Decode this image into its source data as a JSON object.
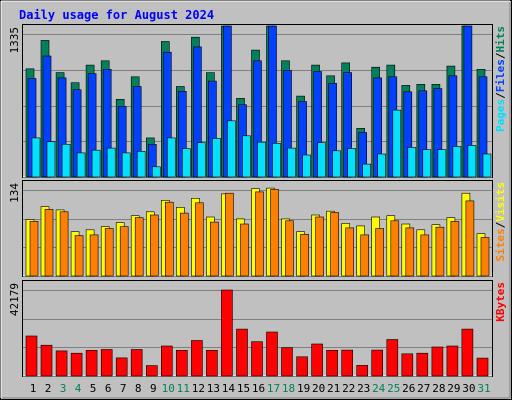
{
  "chart_data": [
    {
      "type": "bar",
      "panel": "top",
      "title": "Daily usage for August 2024",
      "categories": [
        "1",
        "2",
        "3",
        "4",
        "5",
        "6",
        "7",
        "8",
        "9",
        "10",
        "11",
        "12",
        "13",
        "14",
        "15",
        "16",
        "17",
        "18",
        "19",
        "20",
        "21",
        "22",
        "23",
        "24",
        "25",
        "26",
        "27",
        "28",
        "29",
        "30",
        "31"
      ],
      "weekend_days": [
        "3",
        "4",
        "10",
        "11",
        "17",
        "18",
        "24",
        "25",
        "31"
      ],
      "ymax_label": "1335",
      "ymax": 1335,
      "grid": true,
      "legend_placement": "right",
      "series": [
        {
          "name": "Hits",
          "color": "#00805c",
          "values": [
            1010,
            1275,
            975,
            880,
            1045,
            1085,
            725,
            935,
            365,
            1265,
            845,
            1305,
            975,
            1495,
            735,
            1185,
            1555,
            1085,
            755,
            1045,
            945,
            1065,
            455,
            1025,
            1045,
            855,
            865,
            865,
            1035,
            1515,
            1005
          ]
        },
        {
          "name": "Files",
          "color": "#0040ff",
          "values": [
            920,
            1130,
            925,
            815,
            965,
            1005,
            660,
            845,
            305,
            1165,
            800,
            1215,
            895,
            1415,
            675,
            1085,
            1455,
            995,
            705,
            985,
            875,
            975,
            415,
            925,
            935,
            795,
            805,
            825,
            945,
            1445,
            935
          ]
        },
        {
          "name": "Pages",
          "color": "#00e0ff",
          "values": [
            365,
            330,
            305,
            225,
            250,
            270,
            225,
            240,
            95,
            365,
            265,
            320,
            360,
            525,
            385,
            325,
            315,
            270,
            205,
            320,
            245,
            265,
            120,
            215,
            625,
            275,
            255,
            255,
            285,
            295,
            215
          ]
        }
      ]
    },
    {
      "type": "bar",
      "panel": "middle",
      "categories": [
        "1",
        "2",
        "3",
        "4",
        "5",
        "6",
        "7",
        "8",
        "9",
        "10",
        "11",
        "12",
        "13",
        "14",
        "15",
        "16",
        "17",
        "18",
        "19",
        "20",
        "21",
        "22",
        "23",
        "24",
        "25",
        "26",
        "27",
        "28",
        "29",
        "30",
        "31"
      ],
      "ymax_label": "134",
      "ymax": 134,
      "grid": true,
      "legend_placement": "right",
      "series": [
        {
          "name": "Visits",
          "color": "#ffff00",
          "values": [
            88,
            108,
            103,
            69,
            72,
            77,
            83,
            94,
            100,
            118,
            107,
            121,
            92,
            128,
            89,
            136,
            137,
            89,
            69,
            95,
            101,
            82,
            78,
            92,
            94,
            81,
            72,
            80,
            91,
            129,
            66
          ]
        },
        {
          "name": "Sites",
          "color": "#ff8000",
          "values": [
            85,
            104,
            100,
            63,
            64,
            74,
            77,
            91,
            95,
            115,
            98,
            114,
            84,
            129,
            81,
            131,
            135,
            86,
            65,
            92,
            99,
            75,
            64,
            74,
            86,
            75,
            64,
            76,
            85,
            117,
            60
          ]
        }
      ]
    },
    {
      "type": "bar",
      "panel": "bottom",
      "categories": [
        "1",
        "2",
        "3",
        "4",
        "5",
        "6",
        "7",
        "8",
        "9",
        "10",
        "11",
        "12",
        "13",
        "14",
        "15",
        "16",
        "17",
        "18",
        "19",
        "20",
        "21",
        "22",
        "23",
        "24",
        "25",
        "26",
        "27",
        "28",
        "29",
        "30",
        "31"
      ],
      "ymax_label": "42179",
      "ymax": 42179,
      "grid": true,
      "legend_placement": "right",
      "series": [
        {
          "name": "KBytes",
          "color": "#ff0000",
          "values": [
            19600,
            15100,
            12300,
            11200,
            12600,
            13000,
            8900,
            13000,
            5100,
            14700,
            12600,
            17400,
            12600,
            42200,
            23000,
            16800,
            21600,
            13900,
            9400,
            15700,
            12600,
            12700,
            5200,
            12700,
            17900,
            10900,
            11200,
            14200,
            14700,
            23000,
            8800
          ]
        }
      ]
    }
  ],
  "legend": {
    "top": [
      {
        "text": "Pages",
        "color": "#00e0ff"
      },
      {
        "text": "/",
        "color": "#000000"
      },
      {
        "text": "Files",
        "color": "#0040ff"
      },
      {
        "text": "/",
        "color": "#000000"
      },
      {
        "text": "Hits",
        "color": "#00805c"
      }
    ],
    "middle": [
      {
        "text": "Sites",
        "color": "#ff8000"
      },
      {
        "text": "/",
        "color": "#000000"
      },
      {
        "text": "Visits",
        "color": "#ffff00"
      }
    ],
    "bottom": [
      {
        "text": "KBytes",
        "color": "#ff0000"
      }
    ]
  },
  "colors": {
    "panel_background": "#c0c0c0",
    "frame_background": "#c0c0c0",
    "title_text": "#0000ff",
    "weekday_label": "#000000",
    "weekend_label": "#00805c",
    "gridline": "#808080"
  }
}
